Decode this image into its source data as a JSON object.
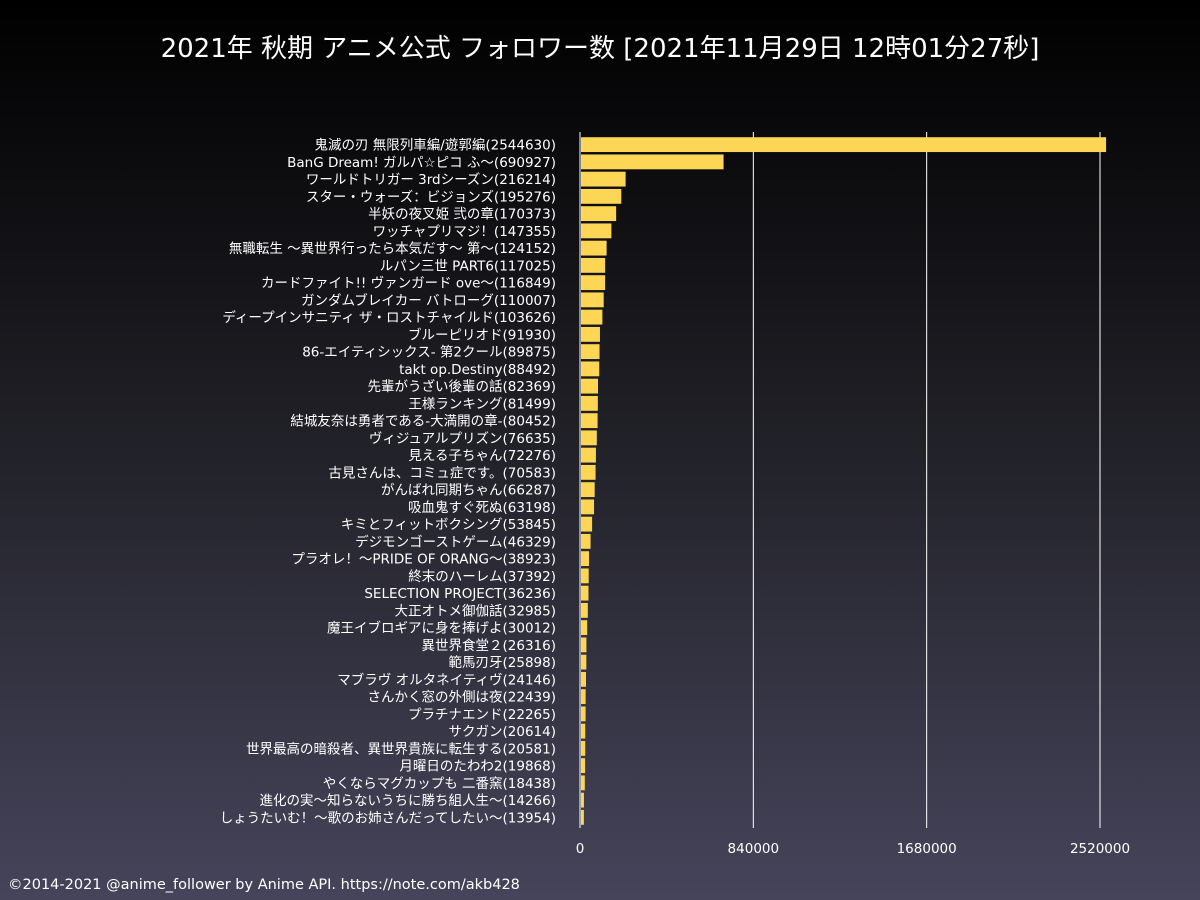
{
  "title": "2021年 秋期 アニメ公式 フォロワー数 [2021年11月29日 12時01分27秒]",
  "footer": "©2014-2021 @anime_follower by Anime API. https://note.com/akb428",
  "colors": {
    "bar": "#fdd655",
    "grid": "#ffffff",
    "text": "#ffffff"
  },
  "chart_data": {
    "type": "bar",
    "orientation": "horizontal",
    "title": "2021年 秋期 アニメ公式 フォロワー数 [2021年11月29日 12時01分27秒]",
    "xlabel": "",
    "ylabel": "",
    "xlim": [
      0,
      2700000
    ],
    "xticks": [
      0,
      840000,
      1680000,
      2520000
    ],
    "xtick_labels": [
      "0",
      "840000",
      "1680000",
      "2520000"
    ],
    "grid": "vertical",
    "categories": [
      "鬼滅の刃 無限列車編/遊郭編(2544630)",
      "BanG Dream! ガルパ☆ピコ ふ〜(690927)",
      "ワールドトリガー 3rdシーズン(216214)",
      "スター・ウォーズ：ビジョンズ(195276)",
      "半妖の夜叉姫 弐の章(170373)",
      "ワッチャプリマジ！(147355)",
      "無職転生 〜異世界行ったら本気だす〜 第〜(124152)",
      "ルパン三世 PART6(117025)",
      "カードファイト!! ヴァンガード ove〜(116849)",
      "ガンダムブレイカー バトローグ(110007)",
      "ディープインサニティ ザ・ロストチャイルド(103626)",
      "ブルーピリオド(91930)",
      "86-エイティシックス- 第2クール(89875)",
      "takt op.Destiny(88492)",
      "先輩がうざい後輩の話(82369)",
      "王様ランキング(81499)",
      "結城友奈は勇者である-大満開の章-(80452)",
      "ヴィジュアルプリズン(76635)",
      "見える子ちゃん(72276)",
      "古見さんは、コミュ症です。(70583)",
      "がんばれ同期ちゃん(66287)",
      "吸血鬼すぐ死ぬ(63198)",
      "キミとフィットボクシング(53845)",
      "デジモンゴーストゲーム(46329)",
      "プラオレ！〜PRIDE OF ORANG〜(38923)",
      "終末のハーレム(37392)",
      "SELECTION PROJECT(36236)",
      "大正オトメ御伽話(32985)",
      "魔王イブロギアに身を捧げよ(30012)",
      "異世界食堂２(26316)",
      "範馬刃牙(25898)",
      "マブラヴ オルタネイティヴ(24146)",
      "さんかく窓の外側は夜(22439)",
      "プラチナエンド(22265)",
      "サクガン(20614)",
      "世界最高の暗殺者、異世界貴族に転生する(20581)",
      "月曜日のたわわ2(19868)",
      "やくならマグカップも 二番窯(18438)",
      "進化の実〜知らないうちに勝ち組人生〜(14266)",
      "しょうたいむ！〜歌のお姉さんだってしたい〜(13954)"
    ],
    "values": [
      2544630,
      690927,
      216214,
      195276,
      170373,
      147355,
      124152,
      117025,
      116849,
      110007,
      103626,
      91930,
      89875,
      88492,
      82369,
      81499,
      80452,
      76635,
      72276,
      70583,
      66287,
      63198,
      53845,
      46329,
      38923,
      37392,
      36236,
      32985,
      30012,
      26316,
      25898,
      24146,
      22439,
      22265,
      20614,
      20581,
      19868,
      18438,
      14266,
      13954
    ]
  }
}
